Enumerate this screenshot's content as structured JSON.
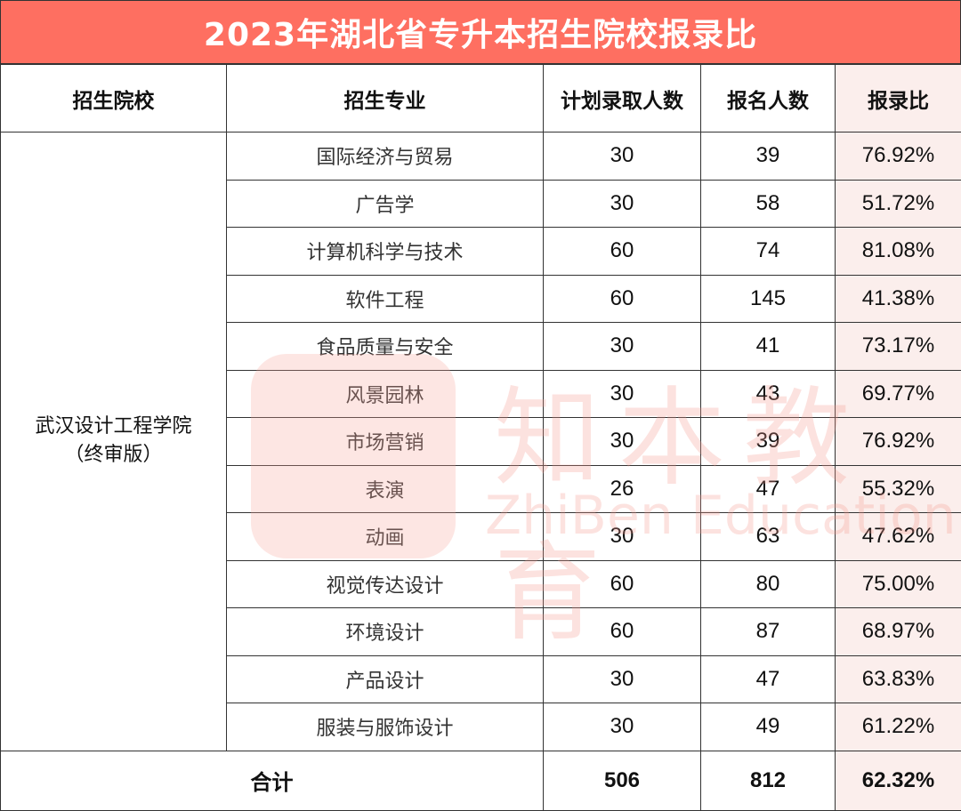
{
  "title": "2023年湖北省专升本招生院校报录比",
  "headers": [
    "招生院校",
    "招生专业",
    "计划录取人数",
    "报名人数",
    "报录比"
  ],
  "school": {
    "name": "武汉设计工程学院",
    "note": "（终审版）"
  },
  "rows": [
    {
      "major": "国际经济与贸易",
      "plan": "30",
      "applicants": "39",
      "ratio": "76.92%"
    },
    {
      "major": "广告学",
      "plan": "30",
      "applicants": "58",
      "ratio": "51.72%"
    },
    {
      "major": "计算机科学与技术",
      "plan": "60",
      "applicants": "74",
      "ratio": "81.08%"
    },
    {
      "major": "软件工程",
      "plan": "60",
      "applicants": "145",
      "ratio": "41.38%"
    },
    {
      "major": "食品质量与安全",
      "plan": "30",
      "applicants": "41",
      "ratio": "73.17%"
    },
    {
      "major": "风景园林",
      "plan": "30",
      "applicants": "43",
      "ratio": "69.77%"
    },
    {
      "major": "市场营销",
      "plan": "30",
      "applicants": "39",
      "ratio": "76.92%"
    },
    {
      "major": "表演",
      "plan": "26",
      "applicants": "47",
      "ratio": "55.32%"
    },
    {
      "major": "动画",
      "plan": "30",
      "applicants": "63",
      "ratio": "47.62%"
    },
    {
      "major": "视觉传达设计",
      "plan": "60",
      "applicants": "80",
      "ratio": "75.00%"
    },
    {
      "major": "环境设计",
      "plan": "60",
      "applicants": "87",
      "ratio": "68.97%"
    },
    {
      "major": "产品设计",
      "plan": "30",
      "applicants": "47",
      "ratio": "63.83%"
    },
    {
      "major": "服装与服饰设计",
      "plan": "30",
      "applicants": "49",
      "ratio": "61.22%"
    }
  ],
  "total": {
    "label": "合计",
    "plan": "506",
    "applicants": "812",
    "ratio": "62.32%"
  },
  "watermark": {
    "cn": "知本教育",
    "en": "ZhiBen Education"
  },
  "colors": {
    "title_bg": "#fe6f61",
    "ratio_bg": "#fbeeec"
  }
}
